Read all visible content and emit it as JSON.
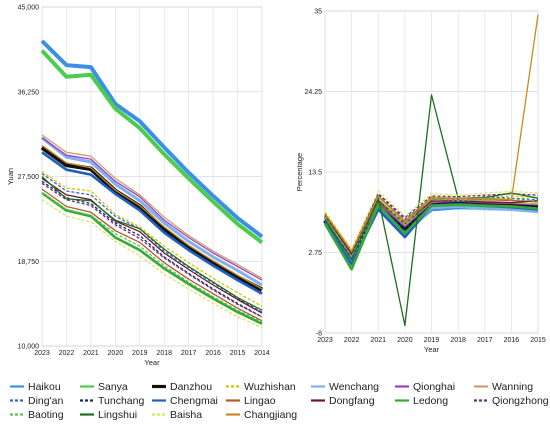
{
  "chart_data": [
    {
      "type": "line",
      "title": "",
      "xlabel": "Year",
      "ylabel": "Yuan",
      "x": [
        "2023",
        "2022",
        "2021",
        "2020",
        "2019",
        "2018",
        "2017",
        "2016",
        "2015",
        "2014"
      ],
      "xticks": [
        "2023",
        "2022",
        "2021",
        "2020",
        "2019",
        "2018",
        "2017",
        "2016",
        "2015",
        "2014"
      ],
      "ylim": [
        10000,
        45000
      ],
      "yticks": [
        "10,000",
        "18,750",
        "27,500",
        "36,250",
        "45,000"
      ],
      "yticks_values": [
        10000,
        18750,
        27500,
        36250,
        45000
      ],
      "grid": true,
      "series": [
        {
          "name": "Haikou",
          "values": [
            41500,
            39000,
            38800,
            35000,
            33200,
            30500,
            27900,
            25500,
            23200,
            21300
          ]
        },
        {
          "name": "Sanya",
          "values": [
            40500,
            37800,
            38000,
            34500,
            32500,
            29800,
            27300,
            24900,
            22600,
            20700
          ]
        },
        {
          "name": "Danzhou",
          "values": [
            30500,
            28700,
            28300,
            26000,
            24400,
            22000,
            20100,
            18600,
            17100,
            15800
          ]
        },
        {
          "name": "Wuzhishan",
          "values": [
            28000,
            26300,
            26000,
            23600,
            22300,
            20300,
            18600,
            17000,
            15500,
            14100
          ]
        },
        {
          "name": "Wenchang",
          "values": [
            31500,
            29500,
            29000,
            26700,
            25000,
            22700,
            20800,
            19200,
            17800,
            16300
          ]
        },
        {
          "name": "Qionghai",
          "values": [
            31500,
            29700,
            29300,
            27000,
            25400,
            23000,
            21200,
            19600,
            18200,
            16800
          ]
        },
        {
          "name": "Wanning",
          "values": [
            31800,
            30000,
            29600,
            27300,
            25600,
            23300,
            21400,
            19800,
            18400,
            17000
          ]
        },
        {
          "name": "Ding'an",
          "values": [
            27800,
            26000,
            25600,
            23400,
            22100,
            19800,
            18100,
            16500,
            14900,
            13500
          ]
        },
        {
          "name": "Tunchang",
          "values": [
            27000,
            25300,
            24700,
            22700,
            21400,
            19200,
            17500,
            15900,
            14400,
            13000
          ]
        },
        {
          "name": "Chengmai",
          "values": [
            30000,
            28200,
            27700,
            25700,
            24000,
            21700,
            19900,
            18300,
            16800,
            15400
          ]
        },
        {
          "name": "Lingao",
          "values": [
            26200,
            24400,
            23800,
            21900,
            20700,
            18600,
            16900,
            15400,
            13900,
            12600
          ]
        },
        {
          "name": "Dongfang",
          "values": [
            27300,
            25600,
            25100,
            22900,
            21800,
            19600,
            17900,
            16300,
            14800,
            13400
          ]
        },
        {
          "name": "Ledong",
          "values": [
            25800,
            24000,
            23400,
            21200,
            19900,
            18000,
            16400,
            14900,
            13500,
            12300
          ]
        },
        {
          "name": "Qiongzhong",
          "values": [
            26800,
            25100,
            24500,
            22500,
            21100,
            19100,
            17400,
            15800,
            14300,
            13000
          ]
        },
        {
          "name": "Baoting",
          "values": [
            25800,
            24100,
            23500,
            21600,
            20300,
            18300,
            16600,
            15100,
            13700,
            12500
          ]
        },
        {
          "name": "Lingshui",
          "values": [
            27500,
            25200,
            25000,
            23000,
            22100,
            20000,
            18200,
            16600,
            15000,
            13700
          ]
        },
        {
          "name": "Baisha",
          "values": [
            25100,
            23400,
            22800,
            20800,
            19300,
            17400,
            15900,
            14400,
            13000,
            11900
          ]
        },
        {
          "name": "Changjiang",
          "values": [
            30700,
            28900,
            28400,
            26100,
            24500,
            22300,
            20400,
            18800,
            17300,
            15900
          ]
        }
      ]
    },
    {
      "type": "line",
      "title": "",
      "xlabel": "Year",
      "ylabel": "Percentage",
      "x": [
        "2023",
        "2022",
        "2021",
        "2020",
        "2019",
        "2018",
        "2017",
        "2016",
        "2015"
      ],
      "xticks": [
        "2023",
        "2022",
        "2021",
        "2020",
        "2019",
        "2018",
        "2017",
        "2016",
        "2015"
      ],
      "ylim": [
        -8,
        35
      ],
      "yticks": [
        "-8",
        "2.75",
        "13.5",
        "24.25",
        "35"
      ],
      "yticks_values": [
        -8,
        2.75,
        13.5,
        24.25,
        35
      ],
      "grid": true,
      "series": [
        {
          "name": "Haikou",
          "values": [
            7.0,
            1.5,
            8.8,
            5.6,
            8.5,
            8.8,
            8.7,
            8.6,
            8.3
          ]
        },
        {
          "name": "Sanya",
          "values": [
            7.6,
            2.6,
            9.5,
            6.3,
            9.2,
            9.3,
            9.2,
            9.0,
            8.8
          ]
        },
        {
          "name": "Danzhou",
          "values": [
            7.0,
            2.0,
            9.2,
            6.0,
            9.3,
            9.4,
            9.3,
            9.2,
            9.0
          ]
        },
        {
          "name": "Wuzhishan",
          "values": [
            7.4,
            2.3,
            9.8,
            6.8,
            10.2,
            9.8,
            10.1,
            10.3,
            10.1
          ]
        },
        {
          "name": "Wenchang",
          "values": [
            7.3,
            1.7,
            8.6,
            5.0,
            8.7,
            8.9,
            8.6,
            8.5,
            8.2
          ]
        },
        {
          "name": "Qionghai",
          "values": [
            7.2,
            2.1,
            9.3,
            6.2,
            9.4,
            9.6,
            9.4,
            9.3,
            9.1
          ]
        },
        {
          "name": "Wanning",
          "values": [
            7.5,
            2.4,
            9.6,
            6.4,
            9.5,
            9.8,
            9.6,
            9.4,
            9.2
          ]
        },
        {
          "name": "Ding'an",
          "values": [
            7.8,
            2.8,
            10.5,
            7.2,
            10.0,
            9.9,
            10.2,
            10.0,
            9.8
          ]
        },
        {
          "name": "Tunchang",
          "values": [
            7.1,
            1.9,
            9.0,
            5.9,
            9.1,
            9.3,
            9.1,
            9.0,
            8.8
          ]
        },
        {
          "name": "Chengmai",
          "values": [
            6.8,
            1.2,
            8.5,
            4.8,
            9.0,
            9.2,
            9.0,
            8.8,
            8.5
          ]
        },
        {
          "name": "Lingao",
          "values": [
            7.6,
            2.7,
            10.2,
            6.9,
            9.8,
            10.0,
            9.8,
            9.7,
            9.5
          ]
        },
        {
          "name": "Dongfang",
          "values": [
            7.7,
            2.5,
            9.7,
            6.6,
            9.6,
            9.7,
            9.5,
            9.4,
            9.7
          ]
        },
        {
          "name": "Ledong",
          "values": [
            6.6,
            0.5,
            9.1,
            5.3,
            9.0,
            9.1,
            9.0,
            8.9,
            8.6
          ]
        },
        {
          "name": "Qiongzhong",
          "values": [
            8.0,
            3.0,
            10.6,
            7.4,
            10.3,
            10.2,
            10.4,
            10.6,
            10.4
          ]
        },
        {
          "name": "Baoting",
          "values": [
            7.5,
            2.2,
            9.9,
            6.5,
            9.9,
            9.7,
            9.8,
            9.9,
            9.6
          ]
        },
        {
          "name": "Lingshui",
          "values": [
            7.2,
            1.8,
            10.0,
            -7.0,
            23.8,
            10.0,
            10.1,
            10.7,
            10.0
          ]
        },
        {
          "name": "Baisha",
          "values": [
            8.2,
            3.2,
            11.0,
            7.6,
            10.6,
            10.4,
            10.7,
            10.9,
            10.7
          ]
        },
        {
          "name": "Changjiang",
          "values": [
            7.9,
            2.9,
            10.3,
            7.0,
            10.1,
            10.0,
            10.0,
            9.8,
            34.5
          ]
        }
      ]
    }
  ],
  "legend": [
    {
      "name": "Haikou",
      "color": "#3b8fe6",
      "dash": "solid"
    },
    {
      "name": "Sanya",
      "color": "#4ccc4c",
      "dash": "solid"
    },
    {
      "name": "Danzhou",
      "color": "#111111",
      "dash": "solid"
    },
    {
      "name": "Wuzhishan",
      "color": "#d4c400",
      "dash": "dashed"
    },
    {
      "name": "Wenchang",
      "color": "#7fb0f0",
      "dash": "solid"
    },
    {
      "name": "Qionghai",
      "color": "#a040c0",
      "dash": "solid"
    },
    {
      "name": "Wanning",
      "color": "#c8a070",
      "dash": "solid"
    },
    {
      "name": "Ding'an",
      "color": "#3366cc",
      "dash": "dashed"
    },
    {
      "name": "Tunchang",
      "color": "#1a2a66",
      "dash": "dashed"
    },
    {
      "name": "Chengmai",
      "color": "#1e5fc0",
      "dash": "solid"
    },
    {
      "name": "Lingao",
      "color": "#b85a2a",
      "dash": "solid"
    },
    {
      "name": "Dongfang",
      "color": "#6a1a2a",
      "dash": "solid"
    },
    {
      "name": "Ledong",
      "color": "#33aa33",
      "dash": "solid"
    },
    {
      "name": "Qiongzhong",
      "color": "#6a2a88",
      "dash": "dashed"
    },
    {
      "name": "Baoting",
      "color": "#55c855",
      "dash": "dashed"
    },
    {
      "name": "Lingshui",
      "color": "#1e6e1e",
      "dash": "solid"
    },
    {
      "name": "Baisha",
      "color": "#d8e860",
      "dash": "dashed"
    },
    {
      "name": "Changjiang",
      "color": "#c88a1e",
      "dash": "solid"
    }
  ]
}
